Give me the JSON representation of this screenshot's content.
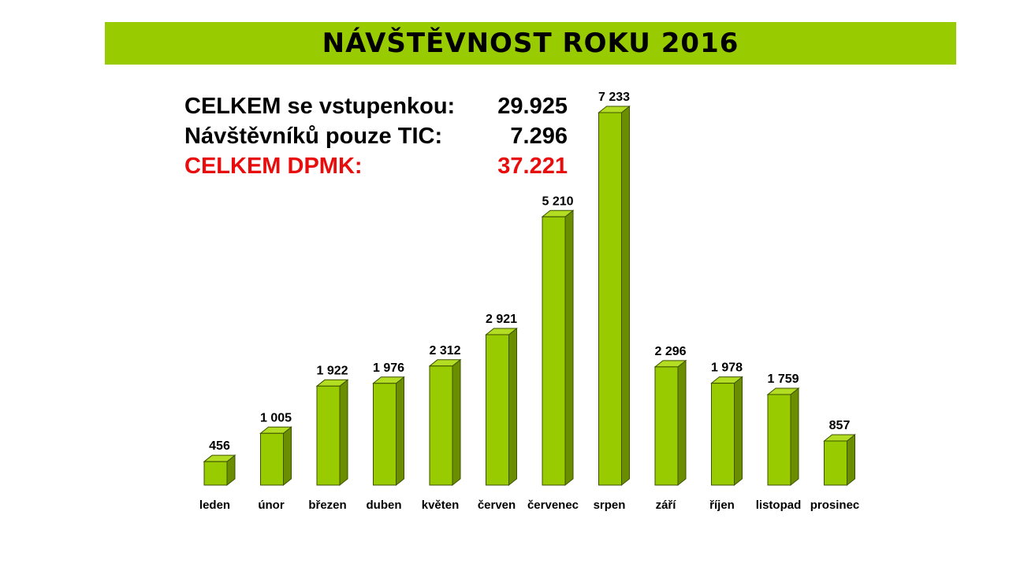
{
  "header": {
    "title": "NÁVŠTĚVNOST ROKU 2016"
  },
  "totals": [
    {
      "label": "CELKEM se vstupenkou:",
      "value": "29.925",
      "color": "#000000"
    },
    {
      "label": "Návštěvníků pouze TIC:",
      "value": "7.296",
      "color": "#000000"
    },
    {
      "label": "CELKEM DPMK:",
      "value": "37.221",
      "color": "#e80c0c"
    }
  ],
  "chart_data": {
    "type": "bar",
    "categories": [
      "leden",
      "únor",
      "březen",
      "duben",
      "květen",
      "červen",
      "červenec",
      "srpen",
      "září",
      "říjen",
      "listopad",
      "prosinec"
    ],
    "values": [
      456,
      1005,
      1922,
      1976,
      2312,
      2921,
      5210,
      7233,
      2296,
      1978,
      1759,
      857
    ],
    "value_labels": [
      "456",
      "1 005",
      "1 922",
      "1 976",
      "2 312",
      "2 921",
      "5 210",
      "7 233",
      "2 296",
      "1 978",
      "1 759",
      "857"
    ],
    "title": "",
    "xlabel": "",
    "ylabel": "",
    "ylim": [
      0,
      7233
    ],
    "grid": false,
    "colors": {
      "front": "#99cc00",
      "side": "#6b8e00",
      "top": "#b3dd22",
      "stroke": "#3d5200"
    }
  }
}
